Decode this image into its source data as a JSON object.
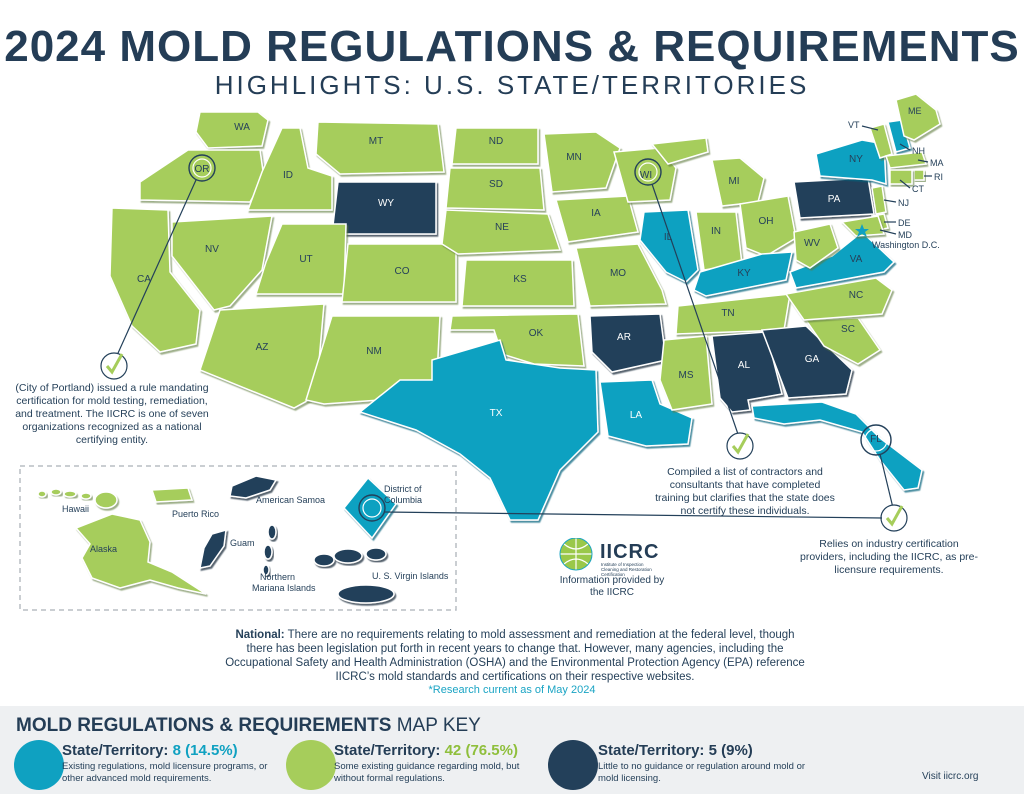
{
  "title": "2024 MOLD REGULATIONS & REQUIREMENTS",
  "subtitle": "HIGHLIGHTS: U.S. STATE/TERRITORIES",
  "colors": {
    "blue": "#0fa1c1",
    "green": "#a6cd5b",
    "navy": "#23405a",
    "title": "#243d56"
  },
  "states": {
    "WA": "WA",
    "OR": "OR",
    "CA": "CA",
    "ID": "ID",
    "NV": "NV",
    "MT": "MT",
    "WY": "WY",
    "UT": "UT",
    "AZ": "AZ",
    "CO": "CO",
    "NM": "NM",
    "ND": "ND",
    "SD": "SD",
    "NE": "NE",
    "KS": "KS",
    "OK": "OK",
    "TX": "TX",
    "MN": "MN",
    "IA": "IA",
    "MO": "MO",
    "AR": "AR",
    "LA": "LA",
    "WI": "WI",
    "IL": "IL",
    "MI": "MI",
    "IN": "IN",
    "OH": "OH",
    "KY": "KY",
    "TN": "TN",
    "MS": "MS",
    "AL": "AL",
    "GA": "GA",
    "FL": "FL",
    "SC": "SC",
    "NC": "NC",
    "VA": "VA",
    "WV": "WV",
    "PA": "PA",
    "NY": "NY",
    "VT": "VT",
    "NH": "NH",
    "ME": "ME",
    "MA": "MA",
    "RI": "RI",
    "CT": "CT",
    "NJ": "NJ",
    "DE": "DE",
    "MD": "MD",
    "DC": "Washington D.C."
  },
  "territories": {
    "hawaii": "Hawaii",
    "alaska": "Alaska",
    "puerto_rico": "Puerto Rico",
    "american_samoa": "American Samoa",
    "guam": "Guam",
    "northern_mariana": "Northern Mariana Islands",
    "usvi": "U. S. Virgin Islands",
    "dc": "District of Columbia"
  },
  "notes": {
    "oregon": "(City of Portland) issued a rule mandating certification for mold testing, remediation, and treatment. The IICRC is one of seven organizations recognized as a national certifying entity.",
    "wisconsin": "Compiled a list of contractors and consultants that have completed training but clarifies that the state does not certify these individuals.",
    "florida": "Relies on industry certification providers, including the IICRC, as pre-licensure requirements."
  },
  "iicrc": {
    "name": "IICRC",
    "subtitle": "Institute of Inspection Cleaning and Restoration Certification",
    "info": "Information provided by the IICRC"
  },
  "national": {
    "label": "National:",
    "text": " There are no requirements relating to mold assessment and remediation at the federal level, though there has been legislation put forth in recent years to change that. However, many agencies, including the Occupational Safety and Health Administration (OSHA) and the Environmental Protection Agency (EPA) reference IICRC’s mold standards and certifications on their respective websites."
  },
  "research": "*Research current as of May 2024",
  "key": {
    "title_bold": "MOLD REGULATIONS & REQUIREMENTS",
    "title_rest": " MAP KEY",
    "items": [
      {
        "label": "State/Territory: ",
        "count": "8 (14.5%)",
        "desc": "Existing regulations, mold licensure programs, or other advanced mold requirements.",
        "color": "#0fa1c1"
      },
      {
        "label": "State/Territory: ",
        "count": "42 (76.5%)",
        "desc": "Some existing guidance regarding mold, but without formal regulations.",
        "color": "#a6cd5b"
      },
      {
        "label": "State/Territory: ",
        "count": "5 (9%)",
        "desc": "Little to no guidance or regulation around mold or mold licensing.",
        "color": "#23405a"
      }
    ]
  },
  "visit": "Visit iicrc.org"
}
